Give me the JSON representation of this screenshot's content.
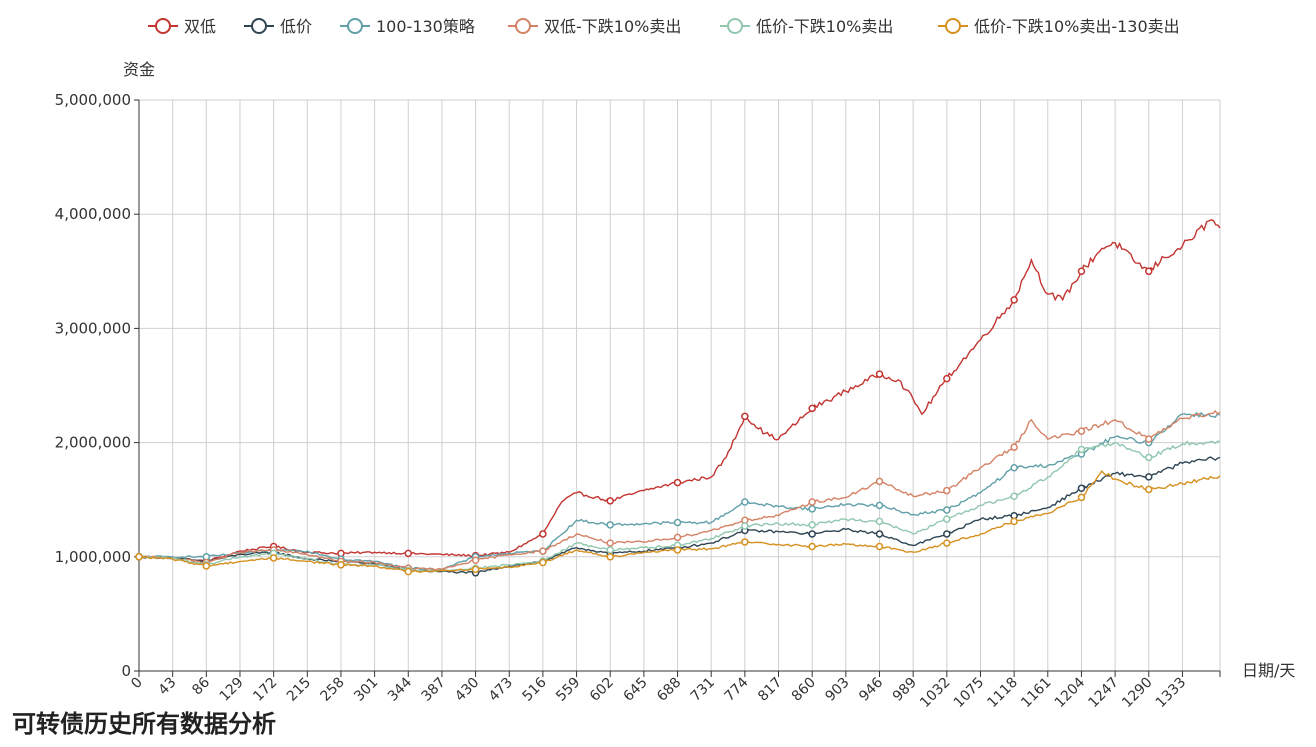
{
  "page": {
    "title": "可转债历史所有数据分析"
  },
  "chart_data": {
    "type": "line",
    "ylabel": "资金",
    "xlabel": "日期/天",
    "ylim": [
      0,
      5000000
    ],
    "xlim": [
      0,
      1381
    ],
    "y_ticks": [
      "0",
      "1,000,000",
      "2,000,000",
      "3,000,000",
      "4,000,000",
      "5,000,000"
    ],
    "x_tick_values": [
      0,
      43,
      86,
      129,
      172,
      215,
      258,
      301,
      344,
      387,
      430,
      473,
      516,
      559,
      602,
      645,
      688,
      731,
      774,
      817,
      860,
      903,
      946,
      989,
      1032,
      1075,
      1118,
      1161,
      1204,
      1247,
      1290,
      1333
    ],
    "grid": true,
    "legend_position": "top",
    "series": [
      {
        "name": "双低",
        "color": "#c23531",
        "x": [
          0,
          43,
          86,
          129,
          172,
          215,
          258,
          301,
          344,
          387,
          430,
          473,
          516,
          540,
          559,
          602,
          645,
          688,
          731,
          750,
          774,
          800,
          817,
          860,
          903,
          946,
          970,
          989,
          1000,
          1032,
          1075,
          1118,
          1140,
          1161,
          1180,
          1204,
          1230,
          1247,
          1270,
          1290,
          1310,
          1333,
          1370,
          1381
        ],
        "values": [
          1000000,
          990000,
          960000,
          1050000,
          1090000,
          1040000,
          1030000,
          1040000,
          1030000,
          1020000,
          1010000,
          1040000,
          1200000,
          1480000,
          1560000,
          1490000,
          1580000,
          1650000,
          1700000,
          1870000,
          2230000,
          2080000,
          2030000,
          2300000,
          2450000,
          2600000,
          2550000,
          2380000,
          2250000,
          2560000,
          2900000,
          3250000,
          3600000,
          3300000,
          3250000,
          3500000,
          3700000,
          3750000,
          3600000,
          3500000,
          3620000,
          3720000,
          3950000,
          3880000
        ]
      },
      {
        "name": "低价",
        "color": "#2f4554",
        "x": [
          0,
          43,
          86,
          129,
          172,
          215,
          258,
          301,
          344,
          387,
          430,
          473,
          516,
          559,
          602,
          645,
          688,
          731,
          774,
          817,
          860,
          903,
          946,
          989,
          1032,
          1075,
          1118,
          1161,
          1204,
          1247,
          1290,
          1333,
          1381
        ],
        "values": [
          1000000,
          990000,
          960000,
          1020000,
          1040000,
          980000,
          960000,
          940000,
          880000,
          870000,
          860000,
          920000,
          960000,
          1080000,
          1030000,
          1050000,
          1080000,
          1120000,
          1230000,
          1220000,
          1200000,
          1240000,
          1200000,
          1100000,
          1200000,
          1330000,
          1360000,
          1430000,
          1600000,
          1730000,
          1700000,
          1820000,
          1870000
        ]
      },
      {
        "name": "100-130策略",
        "color": "#61a0a8",
        "x": [
          0,
          43,
          86,
          129,
          172,
          215,
          258,
          301,
          344,
          387,
          430,
          473,
          516,
          559,
          602,
          645,
          688,
          731,
          774,
          817,
          860,
          903,
          946,
          989,
          1032,
          1075,
          1118,
          1161,
          1204,
          1247,
          1290,
          1333,
          1381
        ],
        "values": [
          1000000,
          1000000,
          1000000,
          1030000,
          1060000,
          1050000,
          980000,
          960000,
          900000,
          890000,
          1000000,
          1030000,
          1050000,
          1320000,
          1280000,
          1290000,
          1300000,
          1300000,
          1480000,
          1440000,
          1420000,
          1460000,
          1450000,
          1370000,
          1410000,
          1560000,
          1780000,
          1800000,
          1900000,
          2050000,
          2000000,
          2250000,
          2240000
        ]
      },
      {
        "name": "双低-下跌10%卖出",
        "color": "#d48265",
        "x": [
          0,
          43,
          86,
          129,
          172,
          215,
          258,
          301,
          344,
          387,
          430,
          473,
          516,
          559,
          602,
          645,
          688,
          731,
          774,
          817,
          860,
          903,
          946,
          989,
          1032,
          1075,
          1118,
          1140,
          1161,
          1204,
          1247,
          1290,
          1333,
          1381
        ],
        "values": [
          1000000,
          990000,
          950000,
          1040000,
          1060000,
          1020000,
          960000,
          950000,
          900000,
          890000,
          970000,
          1020000,
          1050000,
          1200000,
          1120000,
          1130000,
          1170000,
          1230000,
          1320000,
          1360000,
          1480000,
          1520000,
          1660000,
          1530000,
          1580000,
          1780000,
          1960000,
          2200000,
          2030000,
          2100000,
          2200000,
          2030000,
          2210000,
          2270000
        ]
      },
      {
        "name": "低价-下跌10%卖出",
        "color": "#91c7ae",
        "x": [
          0,
          43,
          86,
          129,
          172,
          215,
          258,
          301,
          344,
          387,
          430,
          473,
          516,
          559,
          602,
          645,
          688,
          731,
          774,
          817,
          860,
          903,
          946,
          989,
          1032,
          1075,
          1118,
          1161,
          1204,
          1247,
          1290,
          1333,
          1381
        ],
        "values": [
          1000000,
          990000,
          930000,
          1000000,
          1030000,
          980000,
          930000,
          930000,
          880000,
          880000,
          900000,
          930000,
          960000,
          1120000,
          1060000,
          1080000,
          1100000,
          1160000,
          1270000,
          1290000,
          1280000,
          1330000,
          1310000,
          1200000,
          1330000,
          1450000,
          1530000,
          1700000,
          1940000,
          2000000,
          1870000,
          1990000,
          2010000
        ]
      },
      {
        "name": "低价-下跌10%卖出-130卖出",
        "color": "#d6901f",
        "x": [
          0,
          43,
          86,
          129,
          172,
          215,
          258,
          301,
          344,
          387,
          430,
          473,
          516,
          559,
          602,
          645,
          688,
          731,
          774,
          817,
          860,
          903,
          946,
          989,
          1032,
          1075,
          1118,
          1161,
          1204,
          1230,
          1247,
          1290,
          1333,
          1381
        ],
        "values": [
          1000000,
          980000,
          920000,
          960000,
          990000,
          960000,
          930000,
          920000,
          870000,
          880000,
          890000,
          910000,
          950000,
          1060000,
          1000000,
          1040000,
          1060000,
          1070000,
          1130000,
          1110000,
          1090000,
          1110000,
          1090000,
          1040000,
          1120000,
          1200000,
          1310000,
          1380000,
          1520000,
          1750000,
          1680000,
          1590000,
          1640000,
          1710000
        ]
      }
    ]
  }
}
